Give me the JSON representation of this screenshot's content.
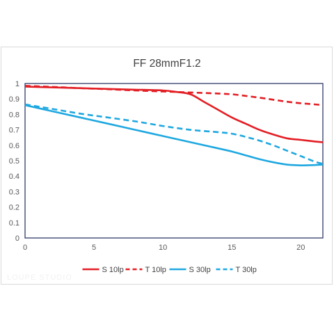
{
  "watermark": "LOUPE STUDIO",
  "chart_data": {
    "type": "line",
    "title": "FF  28mmF1.2",
    "xlabel": "",
    "ylabel": "",
    "xlim": [
      0,
      21.6
    ],
    "ylim": [
      0,
      1
    ],
    "xticks": [
      "0",
      "5",
      "10",
      "15",
      "20"
    ],
    "yticks": [
      "0",
      "0.1",
      "0.2",
      "0.3",
      "0.4",
      "0.5",
      "0.6",
      "0.7",
      "0.8",
      "0.9",
      "1"
    ],
    "grid": false,
    "legend_position": "bottom",
    "series": [
      {
        "name": "S 10lp",
        "color": "#e31e24",
        "dash": "solid",
        "x": [
          0,
          2,
          4,
          6,
          8,
          10,
          11,
          12,
          13,
          14,
          15,
          16,
          17,
          18,
          19,
          20,
          21,
          21.6
        ],
        "y": [
          0.98,
          0.975,
          0.97,
          0.965,
          0.96,
          0.955,
          0.945,
          0.93,
          0.88,
          0.83,
          0.78,
          0.74,
          0.7,
          0.67,
          0.645,
          0.635,
          0.625,
          0.62
        ]
      },
      {
        "name": "T 10lp",
        "color": "#e31e24",
        "dash": "dashed",
        "x": [
          0,
          2,
          4,
          6,
          8,
          10,
          12,
          14,
          15,
          16,
          17,
          18,
          19,
          20,
          21,
          21.6
        ],
        "y": [
          0.985,
          0.978,
          0.97,
          0.963,
          0.955,
          0.948,
          0.942,
          0.935,
          0.93,
          0.92,
          0.908,
          0.895,
          0.882,
          0.872,
          0.865,
          0.86
        ]
      },
      {
        "name": "S 30lp",
        "color": "#1ea8e0",
        "dash": "solid",
        "x": [
          0,
          2,
          4,
          6,
          8,
          10,
          12,
          14,
          15,
          16,
          17,
          18,
          19,
          20,
          21,
          21.6
        ],
        "y": [
          0.86,
          0.82,
          0.78,
          0.74,
          0.7,
          0.66,
          0.62,
          0.58,
          0.56,
          0.535,
          0.51,
          0.49,
          0.475,
          0.47,
          0.472,
          0.475
        ]
      },
      {
        "name": "T 30lp",
        "color": "#1ea8e0",
        "dash": "dashed",
        "x": [
          0,
          2,
          4,
          6,
          8,
          10,
          12,
          14,
          15,
          16,
          17,
          18,
          19,
          20,
          21,
          21.6
        ],
        "y": [
          0.865,
          0.835,
          0.805,
          0.78,
          0.755,
          0.725,
          0.7,
          0.685,
          0.675,
          0.655,
          0.63,
          0.6,
          0.565,
          0.53,
          0.495,
          0.48
        ]
      }
    ]
  }
}
